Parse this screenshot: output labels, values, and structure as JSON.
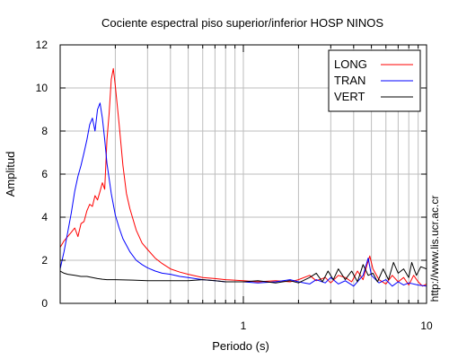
{
  "chart_data": {
    "type": "line",
    "title": "Cociente espectral piso superior/inferior  HOSP NINOS",
    "xlabel": "Periodo (s)",
    "ylabel": "Amplitud",
    "x_scale": "log",
    "xlim": [
      0.1,
      10
    ],
    "ylim": [
      0,
      12
    ],
    "x_ticks": [
      {
        "value": 1,
        "label": "1"
      },
      {
        "value": 10,
        "label": "10"
      }
    ],
    "y_ticks": [
      0,
      2,
      4,
      6,
      8,
      10,
      12
    ],
    "grid": true,
    "legend_position": "top-right",
    "watermark": "http://www.lis.ucr.ac.cr",
    "series": [
      {
        "name": "LONG",
        "color": "#ff0000",
        "points": [
          [
            0.1,
            2.6
          ],
          [
            0.105,
            2.9
          ],
          [
            0.11,
            3.1
          ],
          [
            0.115,
            3.3
          ],
          [
            0.12,
            3.5
          ],
          [
            0.125,
            3.1
          ],
          [
            0.13,
            3.7
          ],
          [
            0.135,
            3.8
          ],
          [
            0.14,
            4.3
          ],
          [
            0.145,
            4.6
          ],
          [
            0.15,
            4.5
          ],
          [
            0.155,
            5.0
          ],
          [
            0.16,
            4.8
          ],
          [
            0.165,
            5.2
          ],
          [
            0.17,
            5.6
          ],
          [
            0.175,
            5.3
          ],
          [
            0.18,
            7.6
          ],
          [
            0.185,
            8.8
          ],
          [
            0.19,
            10.4
          ],
          [
            0.195,
            10.9
          ],
          [
            0.2,
            10.1
          ],
          [
            0.21,
            8.3
          ],
          [
            0.22,
            6.4
          ],
          [
            0.23,
            5.1
          ],
          [
            0.24,
            4.4
          ],
          [
            0.26,
            3.4
          ],
          [
            0.28,
            2.8
          ],
          [
            0.3,
            2.5
          ],
          [
            0.33,
            2.1
          ],
          [
            0.36,
            1.85
          ],
          [
            0.4,
            1.6
          ],
          [
            0.45,
            1.45
          ],
          [
            0.5,
            1.35
          ],
          [
            0.6,
            1.2
          ],
          [
            0.7,
            1.15
          ],
          [
            0.8,
            1.1
          ],
          [
            1.0,
            1.05
          ],
          [
            1.2,
            1.0
          ],
          [
            1.5,
            1.05
          ],
          [
            1.8,
            1.0
          ],
          [
            2.0,
            1.1
          ],
          [
            2.3,
            1.3
          ],
          [
            2.5,
            1.05
          ],
          [
            2.8,
            1.2
          ],
          [
            3.0,
            0.95
          ],
          [
            3.3,
            1.3
          ],
          [
            3.6,
            1.2
          ],
          [
            3.9,
            1.0
          ],
          [
            4.2,
            1.5
          ],
          [
            4.5,
            1.1
          ],
          [
            4.7,
            1.7
          ],
          [
            4.9,
            2.2
          ],
          [
            5.1,
            1.6
          ],
          [
            5.5,
            1.1
          ],
          [
            6.0,
            0.9
          ],
          [
            6.5,
            1.3
          ],
          [
            7.0,
            1.0
          ],
          [
            7.5,
            1.2
          ],
          [
            8.0,
            0.85
          ],
          [
            8.5,
            1.3
          ],
          [
            9.0,
            1.0
          ],
          [
            9.5,
            0.8
          ],
          [
            10.0,
            0.9
          ]
        ]
      },
      {
        "name": "TRAN",
        "color": "#0000ff",
        "points": [
          [
            0.1,
            1.6
          ],
          [
            0.105,
            2.4
          ],
          [
            0.11,
            3.3
          ],
          [
            0.115,
            4.2
          ],
          [
            0.12,
            5.2
          ],
          [
            0.125,
            5.9
          ],
          [
            0.13,
            6.4
          ],
          [
            0.135,
            7.0
          ],
          [
            0.14,
            7.6
          ],
          [
            0.145,
            8.3
          ],
          [
            0.15,
            8.6
          ],
          [
            0.155,
            8.0
          ],
          [
            0.16,
            9.0
          ],
          [
            0.165,
            9.3
          ],
          [
            0.17,
            8.6
          ],
          [
            0.175,
            7.6
          ],
          [
            0.18,
            6.5
          ],
          [
            0.19,
            5.1
          ],
          [
            0.2,
            4.1
          ],
          [
            0.21,
            3.5
          ],
          [
            0.22,
            3.0
          ],
          [
            0.24,
            2.4
          ],
          [
            0.26,
            2.0
          ],
          [
            0.28,
            1.8
          ],
          [
            0.3,
            1.65
          ],
          [
            0.33,
            1.5
          ],
          [
            0.36,
            1.4
          ],
          [
            0.4,
            1.35
          ],
          [
            0.45,
            1.25
          ],
          [
            0.5,
            1.2
          ],
          [
            0.6,
            1.1
          ],
          [
            0.7,
            1.05
          ],
          [
            0.8,
            1.0
          ],
          [
            1.0,
            1.0
          ],
          [
            1.2,
            0.95
          ],
          [
            1.5,
            1.0
          ],
          [
            1.8,
            1.1
          ],
          [
            2.0,
            1.0
          ],
          [
            2.3,
            0.9
          ],
          [
            2.5,
            1.1
          ],
          [
            2.8,
            0.95
          ],
          [
            3.0,
            1.2
          ],
          [
            3.3,
            0.9
          ],
          [
            3.6,
            1.05
          ],
          [
            4.0,
            0.8
          ],
          [
            4.5,
            1.3
          ],
          [
            4.8,
            2.1
          ],
          [
            5.0,
            1.3
          ],
          [
            5.5,
            0.95
          ],
          [
            6.0,
            1.1
          ],
          [
            6.5,
            0.8
          ],
          [
            7.0,
            1.0
          ],
          [
            7.5,
            0.85
          ],
          [
            8.0,
            0.95
          ],
          [
            9.0,
            0.85
          ],
          [
            10.0,
            0.8
          ]
        ]
      },
      {
        "name": "VERT",
        "color": "#000000",
        "points": [
          [
            0.1,
            1.5
          ],
          [
            0.105,
            1.4
          ],
          [
            0.11,
            1.35
          ],
          [
            0.12,
            1.3
          ],
          [
            0.13,
            1.25
          ],
          [
            0.14,
            1.25
          ],
          [
            0.15,
            1.2
          ],
          [
            0.16,
            1.15
          ],
          [
            0.17,
            1.12
          ],
          [
            0.18,
            1.1
          ],
          [
            0.2,
            1.1
          ],
          [
            0.25,
            1.08
          ],
          [
            0.3,
            1.05
          ],
          [
            0.4,
            1.05
          ],
          [
            0.5,
            1.05
          ],
          [
            0.6,
            1.1
          ],
          [
            0.7,
            1.05
          ],
          [
            0.8,
            1.0
          ],
          [
            1.0,
            1.0
          ],
          [
            1.2,
            1.05
          ],
          [
            1.5,
            0.95
          ],
          [
            1.8,
            1.05
          ],
          [
            2.0,
            0.95
          ],
          [
            2.3,
            1.2
          ],
          [
            2.5,
            1.4
          ],
          [
            2.7,
            1.0
          ],
          [
            2.9,
            1.5
          ],
          [
            3.1,
            1.1
          ],
          [
            3.3,
            1.6
          ],
          [
            3.6,
            1.1
          ],
          [
            3.9,
            1.5
          ],
          [
            4.2,
            1.0
          ],
          [
            4.5,
            1.8
          ],
          [
            4.8,
            1.3
          ],
          [
            5.1,
            1.4
          ],
          [
            5.4,
            1.0
          ],
          [
            5.8,
            1.6
          ],
          [
            6.2,
            1.1
          ],
          [
            6.6,
            1.9
          ],
          [
            7.0,
            1.4
          ],
          [
            7.5,
            1.6
          ],
          [
            8.0,
            1.2
          ],
          [
            8.3,
            1.9
          ],
          [
            8.8,
            1.3
          ],
          [
            9.3,
            1.7
          ],
          [
            10.0,
            1.6
          ]
        ]
      }
    ]
  }
}
